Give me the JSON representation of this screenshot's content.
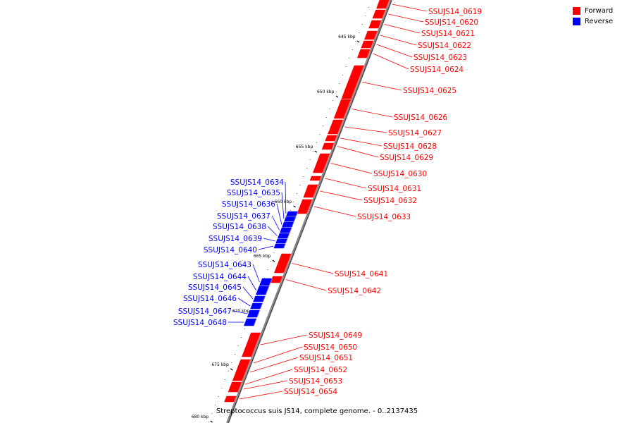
{
  "legend": {
    "forward_label": "Forward",
    "reverse_label": "Reverse",
    "forward_color": "#ff0000",
    "reverse_color": "#0000ff"
  },
  "caption": "Streptococcus suis JS14, complete genome. - 0..2137435",
  "ticks": [
    "645 kbp",
    "650 kbp",
    "655 kbp",
    "660 kbp",
    "665 kbp",
    "670 kbp",
    "675 kbp",
    "680 kbp"
  ],
  "genes_forward": [
    "SSUJS14_0619",
    "SSUJS14_0620",
    "SSUJS14_0621",
    "SSUJS14_0622",
    "SSUJS14_0623",
    "SSUJS14_0624",
    "SSUJS14_0625",
    "SSUJS14_0626",
    "SSUJS14_0627",
    "SSUJS14_0628",
    "SSUJS14_0629",
    "SSUJS14_0630",
    "SSUJS14_0631",
    "SSUJS14_0632",
    "SSUJS14_0633",
    "SSUJS14_0641",
    "SSUJS14_0642",
    "SSUJS14_0649",
    "SSUJS14_0650",
    "SSUJS14_0651",
    "SSUJS14_0652",
    "SSUJS14_0653",
    "SSUJS14_0654"
  ],
  "genes_reverse": [
    "SSUJS14_0634",
    "SSUJS14_0635",
    "SSUJS14_0636",
    "SSUJS14_0637",
    "SSUJS14_0638",
    "SSUJS14_0639",
    "SSUJS14_0640",
    "SSUJS14_0643",
    "SSUJS14_0644",
    "SSUJS14_0645",
    "SSUJS14_0646",
    "SSUJS14_0647",
    "SSUJS14_0648"
  ]
}
